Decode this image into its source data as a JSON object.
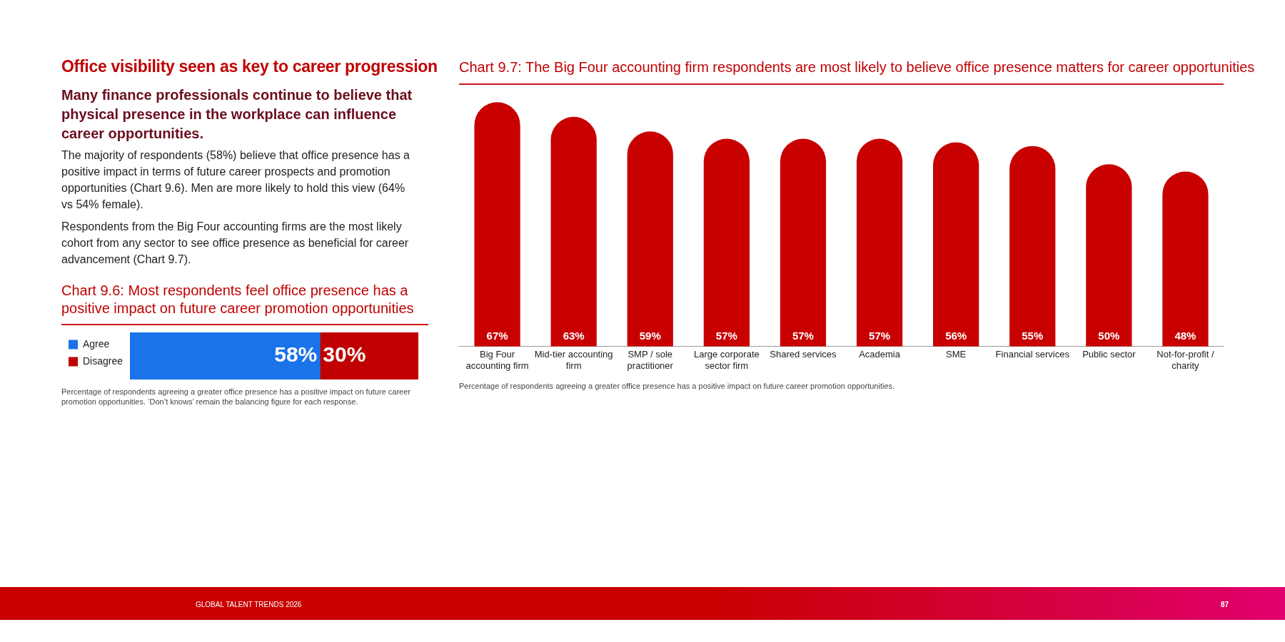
{
  "chart_data": [
    {
      "type": "other",
      "title": "Office visibility seen as key to career progression",
      "subtitle": "Many finance professionals continue to believe that physical presence in the workplace can influence career opportunities.",
      "annotations": [
        "The majority of respondents (58%) believe that office presence has a positive impact in terms of future career prospects and promotion opportunities (Chart 9.6). Men are more likely to hold this view (64% vs 54% female).",
        "Respondents from the Big Four accounting firms are the most likely cohort from any sector to see office presence as beneficial for career advancement (Chart 9.7).",
        "GLOBAL TALENT TRENDS 2026",
        "87"
      ]
    },
    {
      "type": "bar",
      "title": "Chart 9.6: Most respondents feel office presence has a positive impact on future career promotion opportunities",
      "orientation": "horizontal",
      "stacked": true,
      "categories": [
        null
      ],
      "xlim": [
        0,
        88
      ],
      "tick_labels": false,
      "legend": "left",
      "series": [
        {
          "name": "Agree",
          "color": "#1a73e8",
          "values": [
            58
          ],
          "value_labels": [
            "58%"
          ]
        },
        {
          "name": "Disagree",
          "color": "#c00000",
          "values": [
            30
          ],
          "value_labels": [
            "30%"
          ]
        }
      ],
      "annotations": [
        "Percentage of respondents agreeing a greater office presence has a positive impact on future career promotion opportunities. ‘Don’t knows’ remain the balancing figure for each response."
      ]
    },
    {
      "type": "bar",
      "title": "Chart 9.7: The Big Four accounting firm respondents are most likely to believe office presence matters for career opportunities",
      "categories": [
        "Big Four accounting firm",
        "Mid-tier accounting firm",
        "SMP / sole practitioner",
        "Large corporate sector firm",
        "Shared services",
        "Academia",
        "SME",
        "Financial services",
        "Public sector",
        "Not-for-profit / charity"
      ],
      "tick_labels": "x",
      "color": "#c80000",
      "values": [
        67,
        63,
        59,
        57,
        57,
        57,
        56,
        55,
        50,
        48
      ],
      "value_labels": [
        "67%",
        "63%",
        "59%",
        "57%",
        "57%",
        "57%",
        "56%",
        "55%",
        "50%",
        "48%"
      ],
      "annotations": [
        "Percentage of respondents agreeing a greater office presence has a positive impact on future career promotion opportunities."
      ]
    }
  ]
}
